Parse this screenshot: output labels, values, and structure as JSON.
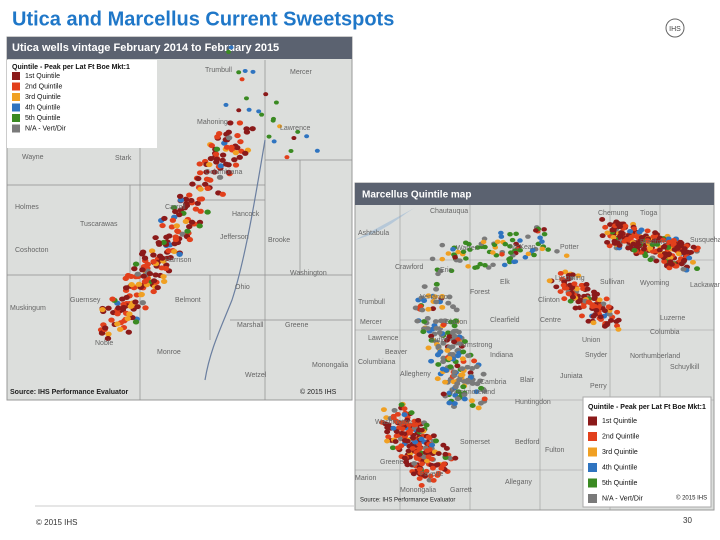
{
  "title": "Utica and Marcellus Current Sweetspots",
  "logo": "IHS",
  "maps": [
    {
      "title": "Utica wells vintage February 2014 to February 2015",
      "legend_title": "Quintile - Peak per Lat Ft Boe Mkt:1",
      "legend": [
        {
          "label": "1st Quintile",
          "color": "#8b1a1a"
        },
        {
          "label": "2nd Quintile",
          "color": "#e2401c"
        },
        {
          "label": "3rd Quintile",
          "color": "#f0a023"
        },
        {
          "label": "4th Quintile",
          "color": "#2f74c0"
        },
        {
          "label": "5th Quintile",
          "color": "#3a8a22"
        },
        {
          "label": "N/A - Vert/Dir",
          "color": "#7a7a7a"
        }
      ],
      "labels": [
        "Trumbull",
        "Mercer",
        "Mahoning",
        "Lawrence",
        "Wayne",
        "Stark",
        "Columbiana",
        "Holmes",
        "Tuscarawas",
        "Carroll",
        "Hancock",
        "Jefferson",
        "Coshocton",
        "Harrison",
        "Washington",
        "Brooke",
        "Guernsey",
        "Belmont",
        "Ohio",
        "Muskingum",
        "Noble",
        "Marshall",
        "Greene",
        "Monroe",
        "Monongalia",
        "Wetzel"
      ],
      "source": "Source: IHS Performance Evaluator",
      "copyright": "© 2015 IHS"
    },
    {
      "title": "Marcellus Quintile map",
      "legend_title": "Quintile - Peak per Lat Ft Boe Mkt:1",
      "legend": [
        {
          "label": "1st Quintile",
          "color": "#8b1a1a"
        },
        {
          "label": "2nd Quintile",
          "color": "#e2401c"
        },
        {
          "label": "3rd Quintile",
          "color": "#f0a023"
        },
        {
          "label": "4th Quintile",
          "color": "#2f74c0"
        },
        {
          "label": "5th Quintile",
          "color": "#3a8a22"
        },
        {
          "label": "N/A - Vert/Dir",
          "color": "#7a7a7a"
        }
      ],
      "labels": [
        "Chautauqua",
        "Chemung",
        "Tioga",
        "Ashtabula",
        "Warren",
        "McKean",
        "Potter",
        "Bradford",
        "Susquehanna",
        "Crawford",
        "Erie",
        "Elk",
        "Lycoming",
        "Sullivan",
        "Wyoming",
        "Lackawanna",
        "Trumbull",
        "Venango",
        "Forest",
        "Clinton",
        "Luzerne",
        "Mercer",
        "Clarion",
        "Clearfield",
        "Centre",
        "Union",
        "Columbia",
        "Lawrence",
        "Butler",
        "Armstrong",
        "Indiana",
        "Snyder",
        "Northumberland",
        "Schuylkill",
        "Columbiana",
        "Beaver",
        "Cambria",
        "Blair",
        "Juniata",
        "Perry",
        "Allegheny",
        "Westmoreland",
        "Huntingdon",
        "Washington",
        "Somerset",
        "Bedford",
        "Fulton",
        "Greene",
        "Fayette",
        "Marion",
        "Monongalia",
        "Garrett",
        "Allegany"
      ],
      "source": "Source: IHS Performance Evaluator",
      "copyright": "© 2015 IHS"
    }
  ],
  "footer": {
    "copyright": "© 2015 IHS",
    "page": "30"
  }
}
